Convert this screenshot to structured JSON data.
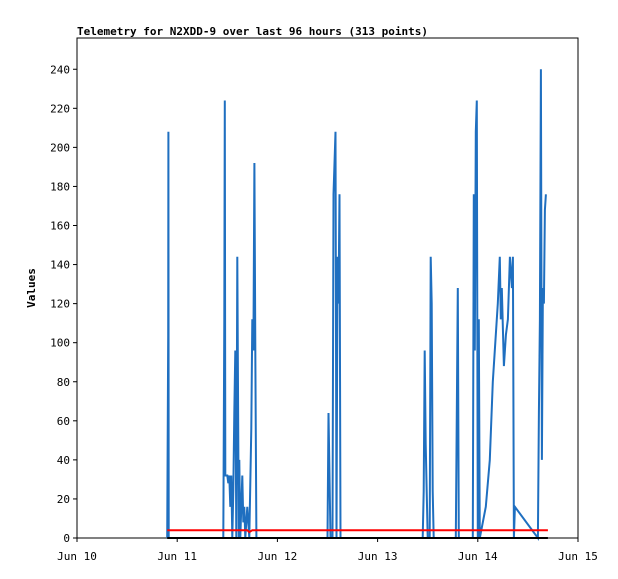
{
  "chart_data": {
    "type": "line",
    "title": "Telemetry for N2XDD-9 over last 96 hours (313 points)",
    "xlabel": "",
    "ylabel": "Values",
    "x_tick_labels": [
      "Jun 10",
      "Jun 11",
      "Jun 12",
      "Jun 13",
      "Jun 14",
      "Jun 15"
    ],
    "xlim": [
      0,
      5
    ],
    "ylim": [
      0,
      256
    ],
    "y_ticks": [
      0,
      20,
      40,
      60,
      80,
      100,
      120,
      140,
      160,
      180,
      200,
      220,
      240
    ],
    "grid": false,
    "series": [
      {
        "color": "#1f6fc0",
        "points": [
          [
            0.9,
            0
          ],
          [
            0.91,
            104
          ],
          [
            0.912,
            208
          ],
          [
            0.915,
            0
          ],
          [
            1.46,
            0
          ],
          [
            1.47,
            112
          ],
          [
            1.475,
            224
          ],
          [
            1.48,
            32
          ],
          [
            1.5,
            32
          ],
          [
            1.51,
            28
          ],
          [
            1.52,
            32
          ],
          [
            1.53,
            16
          ],
          [
            1.54,
            32
          ],
          [
            1.55,
            0
          ],
          [
            1.56,
            24
          ],
          [
            1.57,
            64
          ],
          [
            1.58,
            96
          ],
          [
            1.59,
            0
          ],
          [
            1.6,
            144
          ],
          [
            1.61,
            48
          ],
          [
            1.615,
            0
          ],
          [
            1.62,
            40
          ],
          [
            1.63,
            0
          ],
          [
            1.64,
            16
          ],
          [
            1.65,
            32
          ],
          [
            1.66,
            8
          ],
          [
            1.67,
            16
          ],
          [
            1.68,
            0
          ],
          [
            1.7,
            16
          ],
          [
            1.72,
            0
          ],
          [
            1.74,
            56
          ],
          [
            1.75,
            112
          ],
          [
            1.76,
            96
          ],
          [
            1.77,
            192
          ],
          [
            1.78,
            88
          ],
          [
            1.79,
            0
          ],
          [
            1.8,
            0
          ],
          [
            2.5,
            0
          ],
          [
            2.51,
            64
          ],
          [
            2.52,
            32
          ],
          [
            2.53,
            0
          ],
          [
            2.55,
            0
          ],
          [
            2.56,
            176
          ],
          [
            2.57,
            192
          ],
          [
            2.58,
            208
          ],
          [
            2.59,
            0
          ],
          [
            2.6,
            144
          ],
          [
            2.61,
            120
          ],
          [
            2.62,
            176
          ],
          [
            2.63,
            0
          ],
          [
            2.64,
            0
          ],
          [
            3.45,
            0
          ],
          [
            3.46,
            24
          ],
          [
            3.47,
            96
          ],
          [
            3.48,
            48
          ],
          [
            3.5,
            0
          ],
          [
            3.52,
            0
          ],
          [
            3.53,
            144
          ],
          [
            3.54,
            120
          ],
          [
            3.55,
            24
          ],
          [
            3.56,
            0
          ],
          [
            3.78,
            0
          ],
          [
            3.79,
            64
          ],
          [
            3.8,
            128
          ],
          [
            3.81,
            0
          ],
          [
            3.95,
            0
          ],
          [
            3.96,
            176
          ],
          [
            3.97,
            96
          ],
          [
            3.98,
            208
          ],
          [
            3.99,
            224
          ],
          [
            4.0,
            0
          ],
          [
            4.01,
            112
          ],
          [
            4.02,
            0
          ],
          [
            4.08,
            16
          ],
          [
            4.12,
            40
          ],
          [
            4.15,
            80
          ],
          [
            4.17,
            96
          ],
          [
            4.2,
            120
          ],
          [
            4.22,
            144
          ],
          [
            4.23,
            112
          ],
          [
            4.24,
            128
          ],
          [
            4.26,
            88
          ],
          [
            4.28,
            104
          ],
          [
            4.3,
            112
          ],
          [
            4.32,
            144
          ],
          [
            4.34,
            128
          ],
          [
            4.35,
            144
          ],
          [
            4.36,
            0
          ],
          [
            4.37,
            16
          ],
          [
            4.6,
            0
          ],
          [
            4.61,
            64
          ],
          [
            4.62,
            112
          ],
          [
            4.63,
            240
          ],
          [
            4.64,
            40
          ],
          [
            4.65,
            128
          ],
          [
            4.66,
            120
          ],
          [
            4.67,
            168
          ],
          [
            4.68,
            176
          ]
        ]
      },
      {
        "color": "#ff0000",
        "points": [
          [
            0.9,
            4
          ],
          [
            1.7,
            4
          ],
          [
            1.72,
            3
          ],
          [
            1.75,
            4
          ],
          [
            4.7,
            4
          ]
        ]
      },
      {
        "color": "#000000",
        "points": [
          [
            0.9,
            0
          ],
          [
            4.7,
            0
          ]
        ]
      }
    ]
  }
}
